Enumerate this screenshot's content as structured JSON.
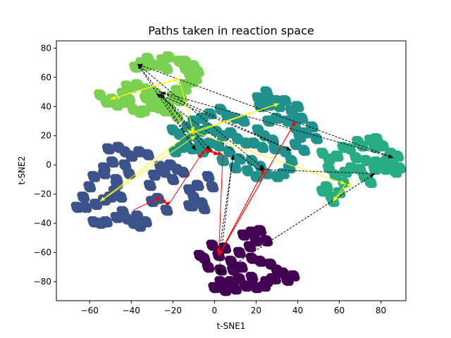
{
  "chart_data": {
    "type": "scatter",
    "title": "Paths taken in reaction space",
    "xlabel": "t-SNE1",
    "ylabel": "t-SNE2",
    "xlim": [
      -76,
      92
    ],
    "ylim": [
      -93,
      85
    ],
    "xticks": [
      -60,
      -40,
      -20,
      0,
      20,
      40,
      60,
      80
    ],
    "yticks": [
      -80,
      -60,
      -40,
      -20,
      0,
      20,
      40,
      60,
      80
    ],
    "grid": false,
    "legend": "none",
    "clusters": [
      {
        "color": "#440154",
        "points": [
          [
            2,
            -62
          ],
          [
            -1,
            -55
          ],
          [
            5,
            -57
          ],
          [
            -5,
            -64
          ],
          [
            8,
            -66
          ],
          [
            12,
            -60
          ],
          [
            17,
            -56
          ],
          [
            20,
            -52
          ],
          [
            14,
            -48
          ],
          [
            18,
            -46
          ],
          [
            22,
            -45
          ],
          [
            25,
            -52
          ],
          [
            -7,
            -62
          ],
          [
            -3,
            -70
          ],
          [
            3,
            -72
          ],
          [
            9,
            -72
          ],
          [
            13,
            -70
          ],
          [
            18,
            -64
          ],
          [
            22,
            -66
          ],
          [
            27,
            -68
          ],
          [
            30,
            -72
          ],
          [
            33,
            -74
          ],
          [
            28,
            -78
          ],
          [
            25,
            -80
          ],
          [
            35,
            -79
          ],
          [
            38,
            -76
          ],
          [
            18,
            -77
          ],
          [
            12,
            -78
          ],
          [
            8,
            -80
          ],
          [
            3,
            -80
          ],
          [
            0,
            -84
          ],
          [
            5,
            -86
          ],
          [
            10,
            -85
          ],
          [
            15,
            -83
          ],
          [
            20,
            -84
          ],
          [
            24,
            -83
          ],
          [
            29,
            -78
          ]
        ]
      },
      {
        "color": "#3b528b",
        "points": [
          [
            -60,
            -15
          ],
          [
            -63,
            -22
          ],
          [
            -57,
            -27
          ],
          [
            -62,
            -29
          ],
          [
            -66,
            -29
          ],
          [
            -53,
            -24
          ],
          [
            -50,
            -22
          ],
          [
            -48,
            -18
          ],
          [
            -45,
            -22
          ],
          [
            -58,
            -8
          ],
          [
            -53,
            -6
          ],
          [
            -47,
            -13
          ],
          [
            -52,
            -39
          ],
          [
            -55,
            -40
          ],
          [
            -58,
            -39
          ],
          [
            -47,
            -36
          ],
          [
            -44,
            -32
          ],
          [
            -42,
            -37
          ],
          [
            -39,
            -40
          ],
          [
            -36,
            -42
          ],
          [
            -37,
            -35
          ],
          [
            -33,
            -39
          ],
          [
            -47,
            -10
          ],
          [
            -41,
            -6
          ],
          [
            -43,
            0
          ],
          [
            -49,
            2
          ],
          [
            -53,
            -2
          ],
          [
            -51,
            11
          ],
          [
            -46,
            12
          ],
          [
            -43,
            9
          ],
          [
            -40,
            6
          ],
          [
            -36,
            9
          ],
          [
            -32,
            7
          ],
          [
            -26,
            -1
          ],
          [
            -29,
            -7
          ],
          [
            -31,
            -14
          ],
          [
            -24,
            -5
          ],
          [
            -20,
            -10
          ],
          [
            -21,
            0
          ],
          [
            -8,
            -14
          ],
          [
            -12,
            -17
          ],
          [
            -10,
            -22
          ],
          [
            -6,
            -26
          ],
          [
            -11,
            -28
          ],
          [
            -5,
            -30
          ],
          [
            -12,
            -28
          ],
          [
            -15,
            -5
          ],
          [
            -18,
            -3
          ],
          [
            -3,
            -8
          ],
          [
            -1,
            -15
          ],
          [
            -27,
            -23
          ],
          [
            -23,
            -31
          ],
          [
            -30,
            -25
          ]
        ]
      },
      {
        "color": "#21918c",
        "points": [
          [
            -20,
            24
          ],
          [
            -17,
            21
          ],
          [
            -14,
            17
          ],
          [
            -10,
            20
          ],
          [
            -7,
            23
          ],
          [
            -3,
            25
          ],
          [
            1,
            23
          ],
          [
            4,
            20
          ],
          [
            -7,
            15
          ],
          [
            -2,
            15
          ],
          [
            2,
            13
          ],
          [
            -6,
            9
          ],
          [
            -11,
            11
          ],
          [
            -16,
            12
          ],
          [
            -19,
            9
          ],
          [
            -13,
            26
          ],
          [
            -10,
            30
          ],
          [
            -6,
            32
          ],
          [
            -2,
            35
          ],
          [
            3,
            38
          ],
          [
            6,
            34
          ],
          [
            10,
            32
          ],
          [
            14,
            30
          ],
          [
            8,
            22
          ],
          [
            11,
            18
          ],
          [
            15,
            15
          ],
          [
            19,
            15
          ],
          [
            24,
            20
          ],
          [
            28,
            17
          ],
          [
            23,
            12
          ],
          [
            29,
            11
          ],
          [
            34,
            9
          ],
          [
            18,
            3
          ],
          [
            22,
            -1
          ],
          [
            25,
            -6
          ],
          [
            20,
            -8
          ],
          [
            12,
            4
          ],
          [
            10,
            -2
          ],
          [
            16,
            -4
          ],
          [
            7,
            9
          ],
          [
            4,
            3
          ],
          [
            21,
            24
          ],
          [
            26,
            30
          ],
          [
            30,
            32
          ],
          [
            35,
            30
          ],
          [
            39,
            31
          ],
          [
            42,
            32
          ],
          [
            40,
            40
          ],
          [
            37,
            37
          ],
          [
            31,
            40
          ],
          [
            26,
            41
          ],
          [
            21,
            46
          ],
          [
            22,
            40
          ],
          [
            26,
            46
          ],
          [
            30,
            44
          ],
          [
            25,
            50
          ],
          [
            34,
            44
          ],
          [
            39,
            25
          ],
          [
            41,
            19
          ],
          [
            44,
            22
          ],
          [
            47,
            26
          ],
          [
            49,
            18
          ],
          [
            39,
            14
          ],
          [
            43,
            10
          ],
          [
            37,
            3
          ],
          [
            36,
            -2
          ],
          [
            33,
            -6
          ],
          [
            30,
            -8
          ]
        ]
      },
      {
        "color": "#27ad81",
        "points": [
          [
            52,
            8
          ],
          [
            55,
            4
          ],
          [
            59,
            6
          ],
          [
            62,
            12
          ],
          [
            65,
            11
          ],
          [
            69,
            16
          ],
          [
            71,
            13
          ],
          [
            75,
            17
          ],
          [
            77,
            12
          ],
          [
            78,
            18
          ],
          [
            81,
            13
          ],
          [
            68,
            5
          ],
          [
            73,
            3
          ],
          [
            78,
            2
          ],
          [
            82,
            -3
          ],
          [
            86,
            0
          ],
          [
            88,
            6
          ],
          [
            85,
            8
          ],
          [
            89,
            -2
          ],
          [
            55,
            -2
          ],
          [
            58,
            -7
          ],
          [
            62,
            -12
          ],
          [
            60,
            -19
          ],
          [
            56,
            -22
          ],
          [
            54,
            -15
          ],
          [
            66,
            -2
          ],
          [
            63,
            -5
          ],
          [
            72,
            -8
          ],
          [
            75,
            -12
          ],
          [
            77,
            -3
          ],
          [
            83,
            3
          ],
          [
            87,
            -5
          ],
          [
            84,
            5
          ],
          [
            70,
            -3
          ],
          [
            52,
            -18
          ],
          [
            57,
            -25
          ]
        ]
      },
      {
        "color": "#7ad151",
        "points": [
          [
            -55,
            48
          ],
          [
            -52,
            43
          ],
          [
            -49,
            45
          ],
          [
            -47,
            41
          ],
          [
            -43,
            43
          ],
          [
            -41,
            45
          ],
          [
            -44,
            49
          ],
          [
            -40,
            53
          ],
          [
            -42,
            54
          ],
          [
            -37,
            55
          ],
          [
            -33,
            52
          ],
          [
            -30,
            50
          ],
          [
            -33,
            46
          ],
          [
            -28,
            44
          ],
          [
            -25,
            43
          ],
          [
            -22,
            41
          ],
          [
            -24,
            37
          ],
          [
            -27,
            39
          ],
          [
            -30,
            40
          ],
          [
            -34,
            37
          ],
          [
            -36,
            36
          ],
          [
            -39,
            38
          ],
          [
            -28,
            49
          ],
          [
            -21,
            37
          ],
          [
            -18,
            33
          ],
          [
            -17,
            44
          ],
          [
            -20,
            47
          ],
          [
            -18,
            51
          ],
          [
            -14,
            55
          ],
          [
            -11,
            57
          ],
          [
            -12,
            63
          ],
          [
            -14,
            66
          ],
          [
            -17,
            71
          ],
          [
            -22,
            74
          ],
          [
            -25,
            72
          ],
          [
            -26,
            68
          ],
          [
            -30,
            69
          ],
          [
            -33,
            68
          ],
          [
            -38,
            67
          ],
          [
            -35,
            70
          ],
          [
            -32,
            73
          ],
          [
            -23,
            66
          ],
          [
            -14,
            71
          ],
          [
            -10,
            68
          ],
          [
            -12,
            62
          ],
          [
            -8,
            64
          ],
          [
            -9,
            59
          ],
          [
            -14,
            52
          ],
          [
            -16,
            46
          ]
        ]
      }
    ],
    "paths": [
      {
        "color": "#000000",
        "points": [
          [
            -37,
            69
          ],
          [
            -9,
            10
          ],
          [
            -26,
            49
          ],
          [
            -2,
            10
          ],
          [
            -3,
            8
          ],
          [
            -37,
            69
          ],
          [
            24,
            -3
          ],
          [
            2,
            -62
          ],
          [
            9,
            7
          ],
          [
            2,
            -75
          ],
          [
            77,
            -6
          ],
          [
            21,
            -3
          ],
          [
            -28,
            49
          ],
          [
            37,
            10
          ],
          [
            -26,
            50
          ],
          [
            86,
            5
          ],
          [
            -37,
            69
          ]
        ]
      },
      {
        "color": "#ff0000",
        "points": [
          [
            -39,
            -31
          ],
          [
            -26,
            -22
          ],
          [
            -23,
            -27
          ],
          [
            -21,
            -25
          ],
          [
            -6,
            8
          ],
          [
            -4,
            10
          ],
          [
            2,
            7
          ],
          [
            -5,
            11
          ],
          [
            4,
            7
          ],
          [
            2,
            -62
          ],
          [
            39,
            30
          ],
          [
            2,
            -62
          ],
          [
            24,
            -3
          ]
        ]
      },
      {
        "color": "#ffff00",
        "points": [
          [
            -18,
            59
          ],
          [
            -50,
            45
          ],
          [
            -17,
            59
          ],
          [
            -10,
            22
          ],
          [
            31,
            42
          ],
          [
            -12,
            22
          ],
          [
            -55,
            -25
          ],
          [
            -9,
            20
          ],
          [
            -13,
            24
          ],
          [
            63,
            -13
          ],
          [
            57,
            -25
          ],
          [
            66,
            -12
          ]
        ]
      }
    ]
  }
}
